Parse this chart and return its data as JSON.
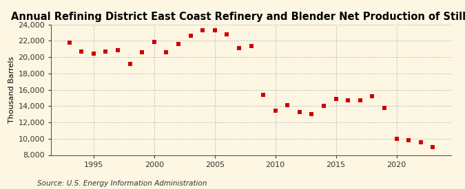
{
  "title": "Annual Refining District East Coast Refinery and Blender Net Production of Still Gas",
  "ylabel": "Thousand Barrels",
  "source": "Source: U.S. Energy Information Administration",
  "background_color": "#fdf6e3",
  "plot_bg_color": "#fdf6e3",
  "marker_color": "#cc0000",
  "years": [
    1993,
    1994,
    1995,
    1996,
    1997,
    1998,
    1999,
    2000,
    2001,
    2002,
    2003,
    2004,
    2005,
    2006,
    2007,
    2008,
    2009,
    2010,
    2011,
    2012,
    2013,
    2014,
    2015,
    2016,
    2017,
    2018,
    2019,
    2020,
    2021,
    2022,
    2023
  ],
  "values": [
    21800,
    20700,
    20400,
    20700,
    20900,
    19200,
    20600,
    21900,
    20600,
    21600,
    22600,
    23300,
    23300,
    22800,
    21100,
    21400,
    15400,
    13400,
    14100,
    13300,
    13000,
    14000,
    14900,
    14700,
    14700,
    15200,
    13800,
    10000,
    9800,
    9600,
    9000
  ],
  "ylim": [
    8000,
    24000
  ],
  "xlim": [
    1991.5,
    2024.5
  ],
  "yticks": [
    8000,
    10000,
    12000,
    14000,
    16000,
    18000,
    20000,
    22000,
    24000
  ],
  "xticks": [
    1995,
    2000,
    2005,
    2010,
    2015,
    2020
  ],
  "grid_color": "#bbbbbb",
  "title_fontsize": 10.5,
  "ylabel_fontsize": 8,
  "tick_fontsize": 8,
  "source_fontsize": 7.5,
  "marker_size": 18
}
